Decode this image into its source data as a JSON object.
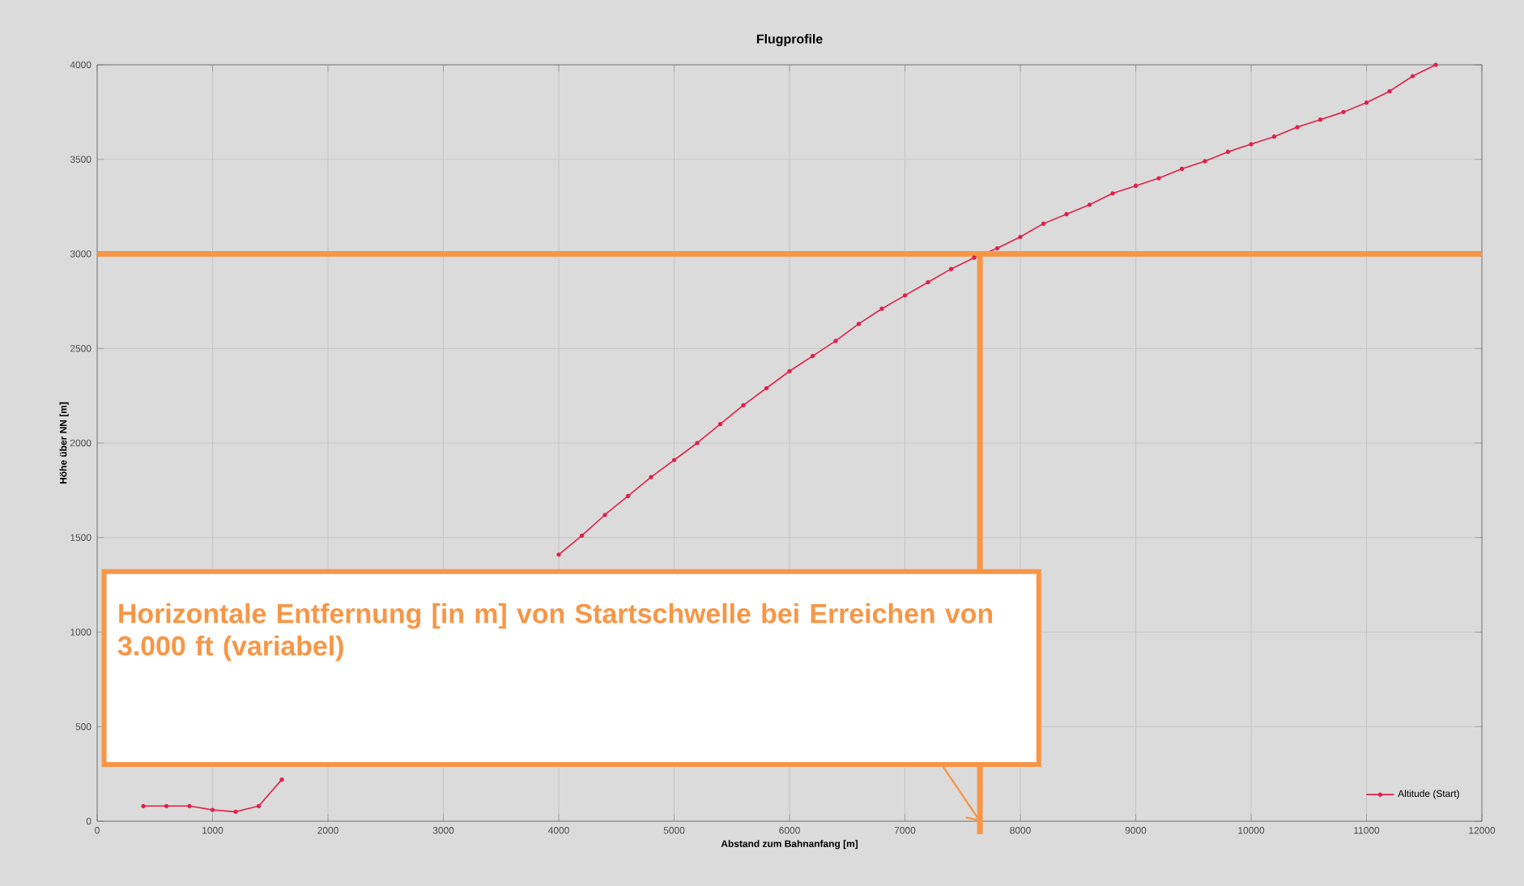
{
  "chart_data": {
    "type": "line",
    "title": "Flugprofile",
    "xlabel": "Abstand zum Bahnanfang [m]",
    "ylabel": "Höhe über NN [m]",
    "x": [
      400,
      600,
      800,
      1000,
      1200,
      1400,
      1600,
      1800,
      2000,
      2200,
      2400,
      2600,
      2800,
      3000,
      3200,
      3400,
      3600,
      3800,
      4000,
      4200,
      4400,
      4600,
      4800,
      5000,
      5200,
      5400,
      5600,
      5800,
      6000,
      6200,
      6400,
      6600,
      6800,
      7000,
      7200,
      7400,
      7600,
      7800,
      8000,
      8200,
      8400,
      8600,
      8800,
      9000,
      9200,
      9400,
      9600,
      9800,
      10000,
      10200,
      10400,
      10600,
      10800,
      11000,
      11200,
      11400,
      11600
    ],
    "series": [
      {
        "name": "Altitude (Start)",
        "color": "#e0204a",
        "values": [
          80,
          80,
          80,
          60,
          50,
          80,
          220,
          null,
          null,
          null,
          null,
          null,
          null,
          null,
          null,
          null,
          null,
          null,
          1410,
          1510,
          1620,
          1720,
          1820,
          1910,
          2000,
          2100,
          2200,
          2290,
          2380,
          2460,
          2540,
          2630,
          2710,
          2780,
          2850,
          2920,
          2980,
          3030,
          3090,
          3160,
          3210,
          3260,
          3320,
          3360,
          3400,
          3450,
          3490,
          3540,
          3580,
          3620,
          3670,
          3710,
          3750,
          3800,
          3860,
          3940,
          4000
        ]
      }
    ],
    "xlim": [
      0,
      12000
    ],
    "ylim": [
      0,
      4000
    ],
    "xticks": [
      0,
      1000,
      2000,
      3000,
      4000,
      5000,
      6000,
      7000,
      8000,
      9000,
      10000,
      11000,
      12000
    ],
    "yticks": [
      0,
      500,
      1000,
      1500,
      2000,
      2500,
      3000,
      3500,
      4000
    ],
    "grid": true,
    "legend": "bottom right",
    "marker": "circle",
    "line_style": "solid",
    "ref_lines": [
      {
        "axis": "y",
        "value": 3000,
        "color": "#f79646"
      },
      {
        "axis": "x",
        "value": 7650,
        "color": "#f79646"
      }
    ],
    "annotations": [
      "Horizontale Entfernung [in m] von Startschwelle bei Erreichen von 3.000 ft (variabel)"
    ]
  }
}
